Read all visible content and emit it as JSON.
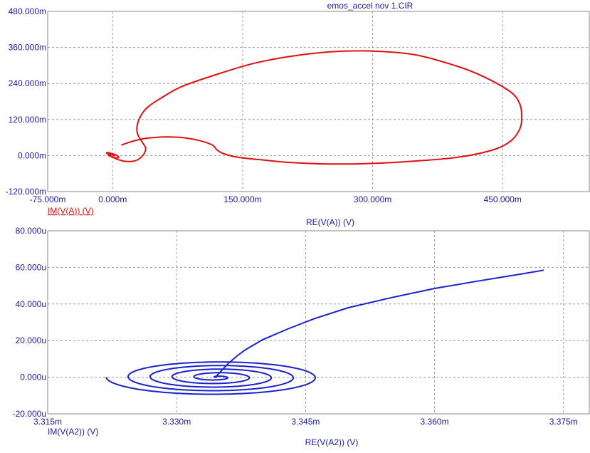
{
  "window": {
    "title": "emos_accel nov 1.CIR"
  },
  "chart_data": [
    {
      "type": "line",
      "xlabel": "RE(V(A)) (V)",
      "ylabel": "IM(V(A)) (V)",
      "xlim": [
        -75,
        550
      ],
      "ylim": [
        -120,
        480
      ],
      "x_ticks": [
        "-75.000m",
        "0.000m",
        "150.000m",
        "300.000m",
        "450.000m"
      ],
      "x_tick_values": [
        -75,
        0,
        150,
        300,
        450
      ],
      "y_ticks": [
        "480.000m",
        "360.000m",
        "240.000m",
        "120.000m",
        "0.000m",
        "-120.000m"
      ],
      "y_tick_values": [
        480,
        360,
        240,
        120,
        0,
        -120
      ],
      "grid": true,
      "color": "#dd1111",
      "series": [
        {
          "name": "IM(V(A)) (V)",
          "x": [
            10,
            20,
            30,
            40,
            60,
            80,
            100,
            115,
            120,
            125,
            135,
            150,
            175,
            200,
            250,
            300,
            350,
            400,
            440,
            460,
            470,
            472,
            470,
            460,
            430,
            400,
            350,
            300,
            250,
            200,
            160,
            120,
            80,
            55,
            40,
            32,
            28,
            29,
            34,
            38,
            36,
            30,
            25,
            20,
            12,
            5,
            0,
            -3,
            -5,
            -7,
            -6,
            -3,
            2,
            6,
            7,
            5,
            1,
            -3,
            -5,
            -4,
            0,
            2,
            0
          ],
          "y": [
            35,
            45,
            53,
            58,
            62,
            60,
            50,
            35,
            20,
            10,
            0,
            -8,
            -15,
            -22,
            -28,
            -26,
            -18,
            -5,
            20,
            50,
            90,
            128,
            170,
            210,
            260,
            295,
            335,
            348,
            345,
            328,
            305,
            270,
            230,
            190,
            160,
            130,
            95,
            70,
            45,
            25,
            5,
            -12,
            -18,
            -20,
            -18,
            -12,
            -5,
            0,
            5,
            8,
            10,
            8,
            4,
            -2,
            -6,
            -8,
            -6,
            -2,
            2,
            5,
            3,
            0,
            0
          ]
        }
      ]
    },
    {
      "type": "line",
      "xlabel": "RE(V(A2)) (V)",
      "ylabel": "IM(V(A2)) (V)",
      "xlim": [
        3.315,
        3.378
      ],
      "ylim": [
        -20,
        80
      ],
      "x_ticks": [
        "3.315m",
        "3.330m",
        "3.345m",
        "3.360m",
        "3.375m"
      ],
      "x_tick_values": [
        3.315,
        3.33,
        3.345,
        3.36,
        3.375
      ],
      "y_ticks": [
        "80.000u",
        "60.000u",
        "40.000u",
        "20.000u",
        "0.000u",
        "-20.000u"
      ],
      "y_tick_values": [
        80,
        60,
        40,
        20,
        0,
        -20
      ],
      "grid": true,
      "color": "#1a22cc",
      "series": [
        {
          "name": "IM(V(A2)) (V)",
          "spiral": {
            "center_x": 3.3346,
            "center_y": 0.0,
            "start_x_radius": 0.0128,
            "start_y_radius": 9.8,
            "start_angle_deg": 180,
            "turns": 5
          },
          "x": [
            3.3346,
            3.3352,
            3.336,
            3.337,
            3.338,
            3.34,
            3.343,
            3.346,
            3.35,
            3.355,
            3.36,
            3.365,
            3.37,
            3.3727
          ],
          "y": [
            0.5,
            3.5,
            7.5,
            11.5,
            15,
            20.5,
            26.5,
            32,
            38,
            43.5,
            48.5,
            52.5,
            56.3,
            58.5
          ]
        }
      ]
    }
  ]
}
